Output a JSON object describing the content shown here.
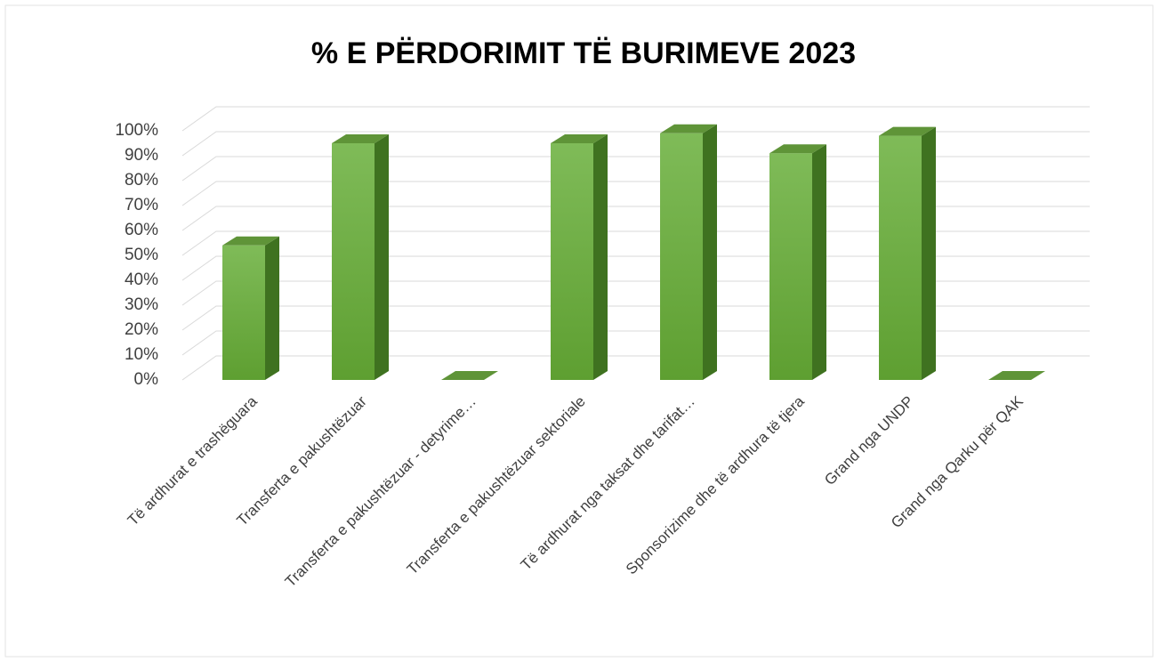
{
  "chart_data": {
    "type": "bar3d",
    "title": "% E PËRDORIMIT TË BURIMEVE 2023",
    "categories": [
      "Të ardhurat e trashëguara",
      "Transferta e pakushtëzuar",
      "Transferta e pakushtëzuar - detyrime…",
      "Transferta e pakushtëzuar sektoriale",
      "Të ardhurat nga taksat dhe tarifat…",
      "Sponsorizime dhe të ardhura të tjera",
      "Grand nga UNDP",
      "Grand nga Qarku për QAK"
    ],
    "values": [
      54,
      95,
      0,
      95,
      99,
      91,
      98,
      0
    ],
    "color": "#70ad47",
    "ylim": [
      0,
      100
    ],
    "yticks": [
      {
        "value": 0,
        "label": "0%"
      },
      {
        "value": 10,
        "label": "10%"
      },
      {
        "value": 20,
        "label": "20%"
      },
      {
        "value": 30,
        "label": "30%"
      },
      {
        "value": 40,
        "label": "40%"
      },
      {
        "value": 50,
        "label": "50%"
      },
      {
        "value": 60,
        "label": "60%"
      },
      {
        "value": 70,
        "label": "70%"
      },
      {
        "value": 80,
        "label": "80%"
      },
      {
        "value": 90,
        "label": "90%"
      },
      {
        "value": 100,
        "label": "100%"
      }
    ],
    "grid": true
  }
}
